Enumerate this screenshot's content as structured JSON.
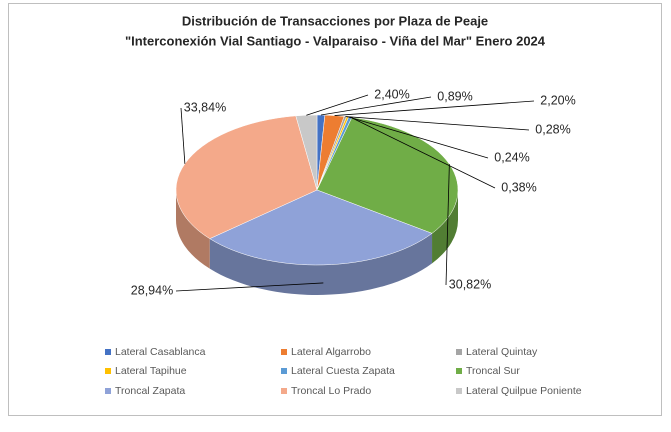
{
  "chart_data": {
    "type": "pie3d",
    "title": "Distribución de Transacciones por Plaza de Peaje",
    "subtitle": "\"Interconexión Vial Santiago - Valparaiso - Viña del Mar\" Enero 2024",
    "categories": [
      "Lateral Casablanca",
      "Lateral Algarrobo",
      "Lateral Quintay",
      "Lateral Tapihue",
      "Lateral Cuesta Zapata",
      "Troncal Sur",
      "Troncal Zapata",
      "Troncal Lo Prado",
      "Lateral Quilpue Poniente"
    ],
    "values": [
      0.89,
      2.2,
      0.28,
      0.24,
      0.38,
      30.82,
      28.94,
      33.84,
      2.4
    ],
    "value_labels": [
      "0,89%",
      "2,20%",
      "0,28%",
      "0,24%",
      "0,38%",
      "30,82%",
      "28,94%",
      "33,84%",
      "2,40%"
    ],
    "colors": [
      "#4472c4",
      "#ed7d31",
      "#a5a5a5",
      "#ffc000",
      "#5b9bd5",
      "#70ad47",
      "#8fa2d8",
      "#f4a98a",
      "#c8c8c8"
    ],
    "legend": "bottom"
  }
}
